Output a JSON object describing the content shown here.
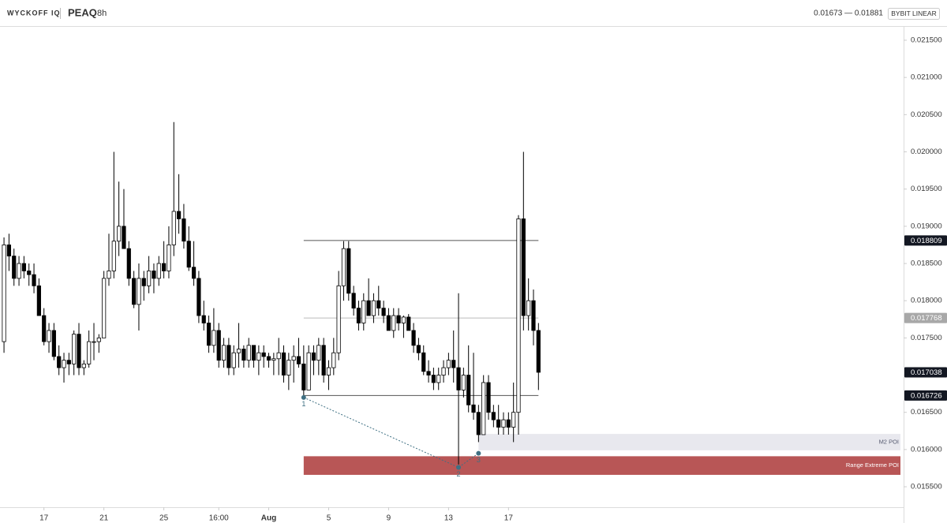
{
  "chart_data": {
    "type": "candlestick",
    "brand": "WYCKOFF IQ",
    "title": "PEAQ",
    "interval": "8h",
    "range_text": "0.01673 — 0.01881",
    "exchange": "BYBIT LINEAR",
    "up_color": "#ffffff",
    "down_color": "#000000",
    "xlim": [
      -0.8,
      180.1
    ],
    "ylim": [
      0.015225,
      0.02168
    ],
    "xticks": [
      {
        "value": 8,
        "label": "17"
      },
      {
        "value": 20,
        "label": "21"
      },
      {
        "value": 32,
        "label": "25"
      },
      {
        "value": 43,
        "label": "16:00"
      },
      {
        "value": 53,
        "label": "Aug"
      },
      {
        "value": 65,
        "label": "5"
      },
      {
        "value": 77,
        "label": "9"
      },
      {
        "value": 89,
        "label": "13"
      },
      {
        "value": 101,
        "label": "17"
      }
    ],
    "yticks": [
      {
        "value": 0.0155,
        "label": "0.015500"
      },
      {
        "value": 0.016,
        "label": "0.016000"
      },
      {
        "value": 0.0165,
        "label": "0.016500"
      },
      {
        "value": 0.017,
        "label": "0.017000"
      },
      {
        "value": 0.0175,
        "label": "0.017500"
      },
      {
        "value": 0.018,
        "label": "0.018000"
      },
      {
        "value": 0.0185,
        "label": "0.018500"
      },
      {
        "value": 0.019,
        "label": "0.019000"
      },
      {
        "value": 0.0195,
        "label": "0.019500"
      },
      {
        "value": 0.02,
        "label": "0.020000"
      },
      {
        "value": 0.0205,
        "label": "0.020500"
      },
      {
        "value": 0.021,
        "label": "0.021000"
      },
      {
        "value": 0.0215,
        "label": "0.021500"
      }
    ],
    "ohlc": [
      [
        0.01745,
        0.01885,
        0.0173,
        0.01875
      ],
      [
        0.01875,
        0.0189,
        0.0184,
        0.0186
      ],
      [
        0.0186,
        0.0187,
        0.0182,
        0.0183
      ],
      [
        0.0183,
        0.0186,
        0.0182,
        0.0185
      ],
      [
        0.0185,
        0.0186,
        0.0183,
        0.0184
      ],
      [
        0.0184,
        0.0185,
        0.0182,
        0.01835
      ],
      [
        0.01835,
        0.0185,
        0.0181,
        0.0182
      ],
      [
        0.0182,
        0.0183,
        0.0178,
        0.0178
      ],
      [
        0.0178,
        0.0179,
        0.0174,
        0.01745
      ],
      [
        0.01745,
        0.0177,
        0.0173,
        0.0176
      ],
      [
        0.0176,
        0.0177,
        0.0172,
        0.01725
      ],
      [
        0.01725,
        0.0174,
        0.017,
        0.0171
      ],
      [
        0.0171,
        0.0173,
        0.0169,
        0.0172
      ],
      [
        0.0172,
        0.0173,
        0.017,
        0.01715
      ],
      [
        0.01715,
        0.0176,
        0.017,
        0.01755
      ],
      [
        0.01755,
        0.0177,
        0.017,
        0.0171
      ],
      [
        0.0171,
        0.0172,
        0.017,
        0.01715
      ],
      [
        0.01715,
        0.0176,
        0.0171,
        0.01745
      ],
      [
        0.01745,
        0.0177,
        0.0172,
        0.01745
      ],
      [
        0.01745,
        0.01755,
        0.0173,
        0.0175
      ],
      [
        0.0175,
        0.0184,
        0.0175,
        0.0183
      ],
      [
        0.0183,
        0.0189,
        0.0182,
        0.0184
      ],
      [
        0.0184,
        0.02,
        0.0183,
        0.0188
      ],
      [
        0.0188,
        0.0196,
        0.0186,
        0.019
      ],
      [
        0.019,
        0.0195,
        0.0187,
        0.0187
      ],
      [
        0.0187,
        0.0188,
        0.0182,
        0.0183
      ],
      [
        0.0183,
        0.0184,
        0.0179,
        0.01795
      ],
      [
        0.01795,
        0.0185,
        0.0176,
        0.0183
      ],
      [
        0.0183,
        0.0184,
        0.018,
        0.0182
      ],
      [
        0.0182,
        0.0186,
        0.0181,
        0.0184
      ],
      [
        0.0184,
        0.0185,
        0.0181,
        0.0183
      ],
      [
        0.0183,
        0.0186,
        0.0182,
        0.0185
      ],
      [
        0.0185,
        0.0188,
        0.0183,
        0.0184
      ],
      [
        0.0184,
        0.019,
        0.0183,
        0.01875
      ],
      [
        0.01875,
        0.0204,
        0.0186,
        0.0192
      ],
      [
        0.0192,
        0.0197,
        0.0189,
        0.0191
      ],
      [
        0.0191,
        0.0193,
        0.0187,
        0.0188
      ],
      [
        0.0188,
        0.019,
        0.0184,
        0.01845
      ],
      [
        0.01845,
        0.0188,
        0.0182,
        0.0183
      ],
      [
        0.0183,
        0.0184,
        0.0177,
        0.0178
      ],
      [
        0.0178,
        0.018,
        0.0176,
        0.0177
      ],
      [
        0.0177,
        0.0178,
        0.0173,
        0.0174
      ],
      [
        0.0174,
        0.0179,
        0.0173,
        0.0176
      ],
      [
        0.0176,
        0.0177,
        0.0171,
        0.0172
      ],
      [
        0.0172,
        0.0175,
        0.0171,
        0.0174
      ],
      [
        0.0174,
        0.0175,
        0.017,
        0.0171
      ],
      [
        0.0171,
        0.0174,
        0.017,
        0.0173
      ],
      [
        0.0173,
        0.0177,
        0.0171,
        0.01735
      ],
      [
        0.01735,
        0.0174,
        0.0171,
        0.0172
      ],
      [
        0.0172,
        0.0175,
        0.0171,
        0.0174
      ],
      [
        0.0174,
        0.0174,
        0.0171,
        0.0172
      ],
      [
        0.0172,
        0.0174,
        0.017,
        0.0173
      ],
      [
        0.0173,
        0.0174,
        0.0171,
        0.01725
      ],
      [
        0.01725,
        0.0173,
        0.0171,
        0.0172
      ],
      [
        0.0172,
        0.0173,
        0.017,
        0.01722
      ],
      [
        0.01722,
        0.0175,
        0.017,
        0.0173
      ],
      [
        0.0173,
        0.0174,
        0.0169,
        0.017
      ],
      [
        0.017,
        0.0173,
        0.0168,
        0.0172
      ],
      [
        0.0172,
        0.0174,
        0.0169,
        0.01725
      ],
      [
        0.01725,
        0.0175,
        0.0171,
        0.01715
      ],
      [
        0.01715,
        0.0174,
        0.0167,
        0.0168
      ],
      [
        0.0168,
        0.0174,
        0.0168,
        0.0173
      ],
      [
        0.0173,
        0.0174,
        0.017,
        0.0172
      ],
      [
        0.0172,
        0.0175,
        0.017,
        0.0174
      ],
      [
        0.0174,
        0.0175,
        0.0169,
        0.017
      ],
      [
        0.017,
        0.0172,
        0.0168,
        0.0171
      ],
      [
        0.0171,
        0.0175,
        0.017,
        0.0173
      ],
      [
        0.0173,
        0.0184,
        0.0172,
        0.0182
      ],
      [
        0.0182,
        0.0188,
        0.018,
        0.0187
      ],
      [
        0.0187,
        0.0188,
        0.018,
        0.0181
      ],
      [
        0.0181,
        0.0182,
        0.0178,
        0.0179
      ],
      [
        0.0179,
        0.018,
        0.0176,
        0.0177
      ],
      [
        0.0177,
        0.0181,
        0.0176,
        0.018
      ],
      [
        0.018,
        0.0183,
        0.0178,
        0.0178
      ],
      [
        0.0178,
        0.0181,
        0.0177,
        0.018
      ],
      [
        0.018,
        0.0182,
        0.0178,
        0.0179
      ],
      [
        0.0179,
        0.018,
        0.0177,
        0.0178
      ],
      [
        0.0178,
        0.0179,
        0.0176,
        0.0176
      ],
      [
        0.0176,
        0.0179,
        0.0175,
        0.0178
      ],
      [
        0.0178,
        0.0179,
        0.0176,
        0.0177
      ],
      [
        0.0177,
        0.0178,
        0.0175,
        0.01778
      ],
      [
        0.01778,
        0.01782,
        0.0176,
        0.0176
      ],
      [
        0.0176,
        0.0177,
        0.0173,
        0.0174
      ],
      [
        0.0174,
        0.0175,
        0.0172,
        0.0173
      ],
      [
        0.0173,
        0.0174,
        0.017,
        0.01705
      ],
      [
        0.01705,
        0.0172,
        0.0169,
        0.017
      ],
      [
        0.017,
        0.0171,
        0.0168,
        0.0169
      ],
      [
        0.0169,
        0.0171,
        0.0168,
        0.017
      ],
      [
        0.017,
        0.0172,
        0.0169,
        0.0171
      ],
      [
        0.0171,
        0.0173,
        0.017,
        0.0172
      ],
      [
        0.0172,
        0.0176,
        0.0169,
        0.0171
      ],
      [
        0.0171,
        0.0181,
        0.0158,
        0.0168
      ],
      [
        0.0168,
        0.0171,
        0.0167,
        0.017
      ],
      [
        0.017,
        0.0174,
        0.0165,
        0.0166
      ],
      [
        0.0166,
        0.0173,
        0.0164,
        0.0165
      ],
      [
        0.0165,
        0.0166,
        0.0161,
        0.0162
      ],
      [
        0.0162,
        0.017,
        0.0162,
        0.0169
      ],
      [
        0.0169,
        0.017,
        0.0164,
        0.0165
      ],
      [
        0.0165,
        0.0166,
        0.0163,
        0.0164
      ],
      [
        0.0164,
        0.0166,
        0.0162,
        0.0163
      ],
      [
        0.0163,
        0.0165,
        0.0162,
        0.0164
      ],
      [
        0.0164,
        0.0165,
        0.0162,
        0.0163
      ],
      [
        0.0163,
        0.0169,
        0.0161,
        0.0165
      ],
      [
        0.0165,
        0.01915,
        0.0162,
        0.0191
      ],
      [
        0.0191,
        0.02,
        0.0176,
        0.0178
      ],
      [
        0.0178,
        0.0183,
        0.0176,
        0.018
      ],
      [
        0.018,
        0.01815,
        0.0174,
        0.0176
      ],
      [
        0.0176,
        0.0177,
        0.0168,
        0.017038
      ]
    ],
    "levels": [
      {
        "value": 0.018809,
        "start": 60,
        "end": 107,
        "color": "#555555"
      },
      {
        "value": 0.017768,
        "start": 60,
        "end": 107,
        "color": "#bbbbbb"
      },
      {
        "value": 0.016726,
        "start": 60,
        "end": 107,
        "color": "#555555"
      }
    ],
    "price_labels": [
      {
        "value": 0.018809,
        "color": "#131722"
      },
      {
        "value": 0.017768,
        "color": "#a8a8a8"
      },
      {
        "value": 0.017038,
        "color": "#131722"
      },
      {
        "value": 0.016726,
        "color": "#131722"
      }
    ],
    "zones": [
      {
        "label": "M2 POI",
        "start": 95,
        "top": 0.01621,
        "bottom": 0.01599,
        "color": "#e8e8ee",
        "text_color": "#555a70"
      },
      {
        "label": "Range Extreme POI",
        "start": 60,
        "top": 0.01591,
        "bottom": 0.01566,
        "color": "#b85656",
        "text_color": "#ffffff"
      }
    ],
    "points": [
      {
        "label": "1",
        "x": 60,
        "y": 0.0167
      },
      {
        "label": "2",
        "x": 91,
        "y": 0.01576
      },
      {
        "label": "3",
        "x": 95,
        "y": 0.01595
      }
    ],
    "point_color": "#3f7083"
  }
}
